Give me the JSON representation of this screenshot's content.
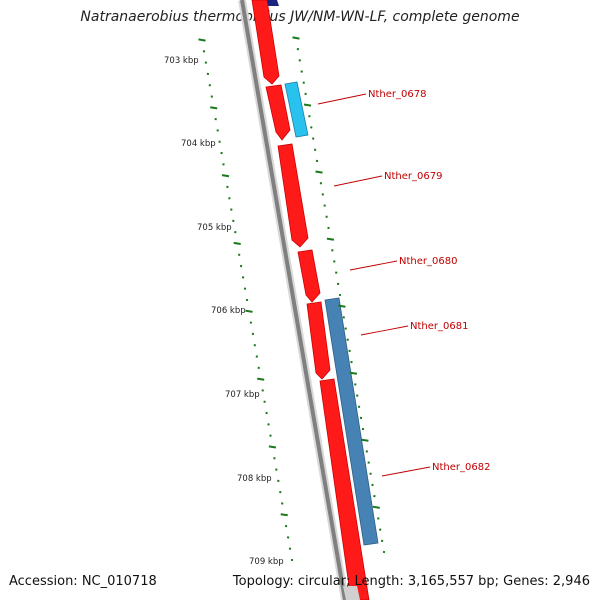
{
  "title": "Natranaerobius thermophilus JW/NM-WN-LF, complete genome",
  "footer": {
    "accession": "Accession: NC_010718",
    "summary": "Topology: circular; Length: 3,165,557 bp; Genes: 2,946"
  },
  "scale_labels": [
    "703 kbp",
    "704 kbp",
    "705 kbp",
    "706 kbp",
    "707 kbp",
    "708 kbp",
    "709 kbp"
  ],
  "gene_labels": [
    "Nther_0678",
    "Nther_0679",
    "Nther_0680",
    "Nther_0681",
    "Nther_0682"
  ],
  "colors": {
    "forward_gene": "#ff1a1a",
    "cyan_gene": "#29c2ee",
    "blue_gene": "#4682b4",
    "backbone": "#808080",
    "tick": "#1a7a1a",
    "label": "#c00000"
  }
}
